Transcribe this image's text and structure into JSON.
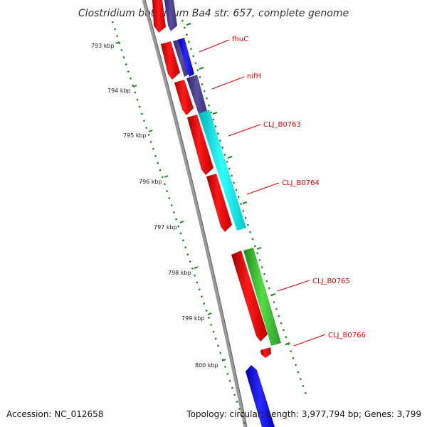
{
  "title": "Clostridium botulinum Ba4 str. 657, complete genome",
  "footer": {
    "accession": "Accession: NC_012658",
    "topology": "Topology: circular; Length: 3,977,794 bp; Genes: 3,799"
  },
  "ticks": [
    "793 kbp",
    "794 kbp",
    "795 kbp",
    "796 kbp",
    "797 kbp",
    "798 kbp",
    "799 kbp",
    "800 kbp"
  ],
  "gene_labels": [
    "fhuC",
    "nifH",
    "CLJ_B0763",
    "CLJ_B0764",
    "CLJ_B0765",
    "CLJ_B0766"
  ],
  "colors": {
    "cds": "#ff0000",
    "gene_dark_blue": "#4b3f8c",
    "gene_blue": "#1a1aff",
    "gene_cyan": "#19f5f5",
    "gene_green": "#44cc33",
    "backbone": "#888888",
    "tick": "#1f8a1f",
    "label": "#e00000"
  }
}
